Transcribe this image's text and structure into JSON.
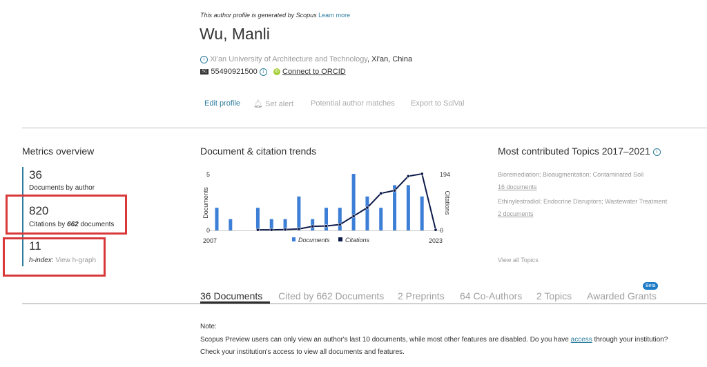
{
  "header": {
    "notice": "This author profile is generated by Scopus",
    "learn_more": "Learn more",
    "name": "Wu, Manli",
    "affiliation": "Xi'an University of Architecture and Technology",
    "location": ", Xi'an, China",
    "scopus_id": "55490921500",
    "orcid_link": "Connect to ORCID",
    "actions": [
      "Edit profile",
      "Set alert",
      "Potential author matches",
      "Export to SciVal"
    ]
  },
  "metrics": {
    "title": "Metrics overview",
    "documents_value": "36",
    "documents_label": "Documents by author",
    "citations_value": "820",
    "citations_label_pre": "Citations by ",
    "citations_docs": "662",
    "citations_label_post": " documents",
    "hindex_value": "11",
    "hindex_label": "h-index:",
    "hgraph_link": "View h-graph",
    "highlight_color": "#d9383a"
  },
  "trends": {
    "title": "Document & citation trends"
  },
  "chart_data": {
    "type": "bar+line",
    "x": [
      2007,
      2008,
      2009,
      2010,
      2011,
      2012,
      2013,
      2014,
      2015,
      2016,
      2017,
      2018,
      2019,
      2020,
      2021,
      2022,
      2023
    ],
    "x_tick_labels": [
      "2007",
      "2023"
    ],
    "series": [
      {
        "name": "Documents",
        "type": "bar",
        "axis": "left",
        "color": "#3d7fd6",
        "values": [
          2,
          1,
          0,
          2,
          1,
          1,
          3,
          1,
          2,
          2,
          5,
          3,
          2,
          4,
          4,
          3,
          0
        ]
      },
      {
        "name": "Citations",
        "type": "line",
        "axis": "right",
        "color": "#0c1a4a",
        "values": [
          null,
          null,
          null,
          2,
          2,
          3,
          5,
          14,
          15,
          20,
          49,
          78,
          127,
          137,
          186,
          194,
          2
        ]
      }
    ],
    "ylabel_left": "Documents",
    "ylim_left": [
      0,
      5
    ],
    "left_ticks": [
      "0",
      "5"
    ],
    "ylabel_right": "Citations",
    "ylim_right": [
      0,
      194
    ],
    "right_ticks": [
      "0",
      "194"
    ],
    "legend_position": "bottom"
  },
  "topics": {
    "title": "Most contributed Topics 2017–2021",
    "items": [
      {
        "name": "Bioremediation; Bioaugmentation; Contaminated Soil",
        "docs": "16 documents"
      },
      {
        "name": "Ethinylestradiol; Endocrine Disruptors; Wastewater Treatment",
        "docs": "2 documents"
      }
    ],
    "view_all": "View all Topics"
  },
  "tabs": [
    "36 Documents",
    "Cited by 662 Documents",
    "2 Preprints",
    "64 Co-Authors",
    "2 Topics",
    "Awarded Grants"
  ],
  "beta_badge": "Beta",
  "note": {
    "title": "Note:",
    "line1_pre": "Scopus Preview users can only view an author's last 10 documents, while most other features are disabled. Do you have ",
    "access_link": "access",
    "line1_post": " through your institution?",
    "line2": "Check your institution's access to view all documents and features."
  }
}
